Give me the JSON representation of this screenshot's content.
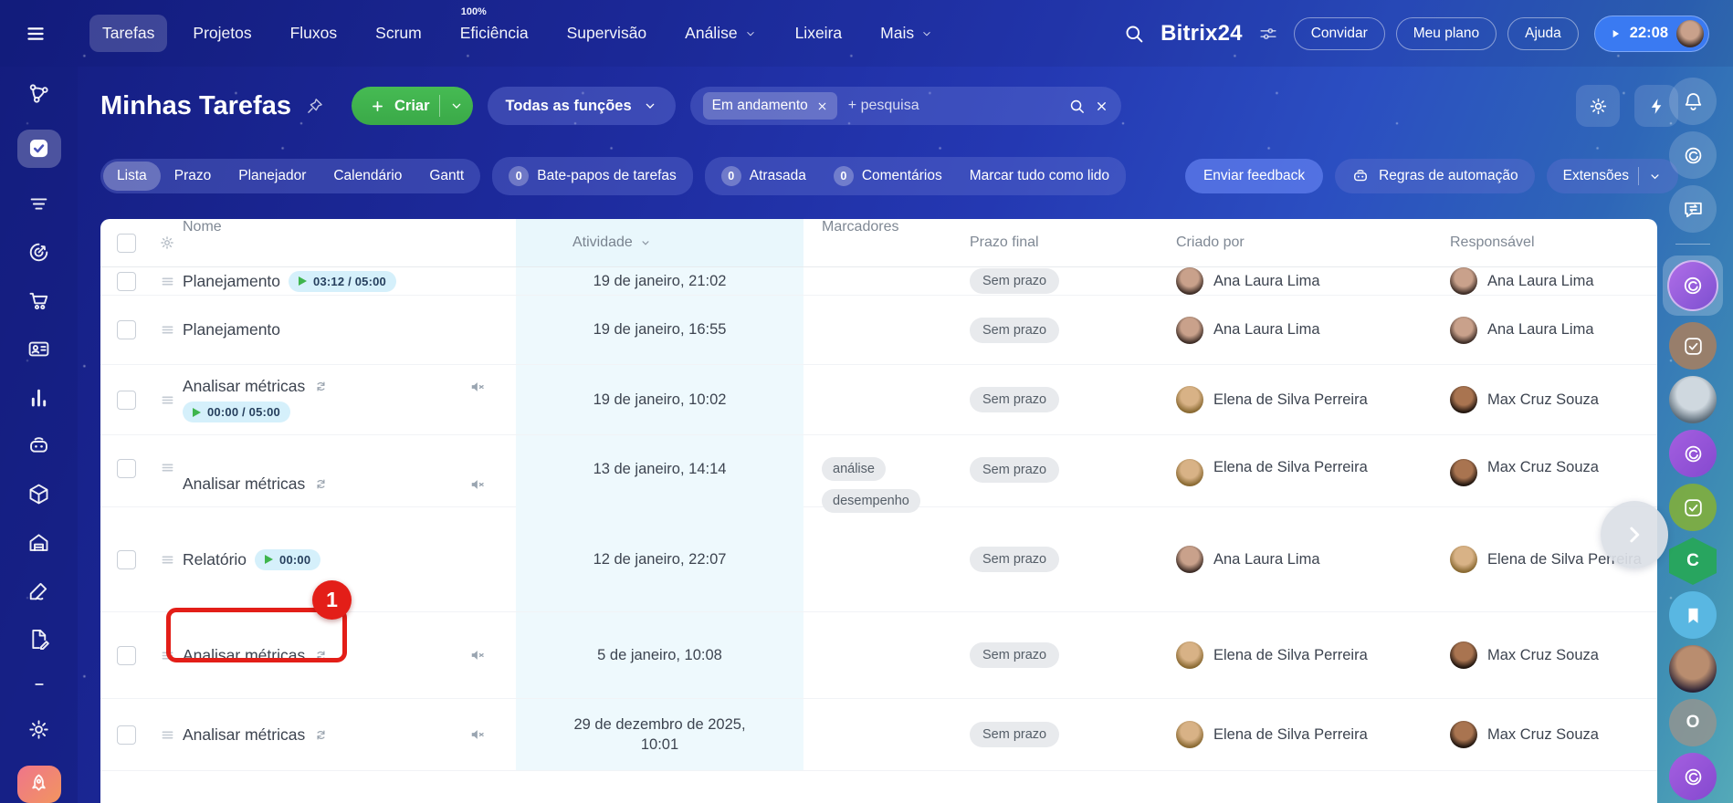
{
  "topbar": {
    "brand": "Bitrix24",
    "timer": "22:08",
    "nav": [
      {
        "label": "Tarefas",
        "active": true
      },
      {
        "label": "Projetos"
      },
      {
        "label": "Fluxos"
      },
      {
        "label": "Scrum"
      },
      {
        "label": "Eficiência",
        "badge": "100%"
      },
      {
        "label": "Supervisão"
      },
      {
        "label": "Análise",
        "chevron": true
      },
      {
        "label": "Lixeira"
      },
      {
        "label": "Mais",
        "chevron": true
      }
    ],
    "buttons": [
      {
        "label": "Convidar"
      },
      {
        "label": "Meu plano"
      },
      {
        "label": "Ajuda"
      }
    ]
  },
  "sidebar": {
    "items": [
      {
        "name": "network-icon",
        "icon": "network"
      },
      {
        "name": "tasks-icon",
        "icon": "checksq_solid",
        "active": true
      },
      {
        "name": "feed-icon",
        "icon": "feed"
      },
      {
        "name": "crm-icon",
        "icon": "target"
      },
      {
        "name": "store-icon",
        "icon": "cart"
      },
      {
        "name": "contact-center-icon",
        "icon": "idcard"
      },
      {
        "name": "analytics-icon",
        "icon": "chart"
      },
      {
        "name": "automation-robot-icon",
        "icon": "robot"
      },
      {
        "name": "catalog-box-icon",
        "icon": "box"
      },
      {
        "name": "warehouse-icon",
        "icon": "warehouse"
      },
      {
        "name": "sign-pen-icon",
        "icon": "pen"
      },
      {
        "name": "document-sign-icon",
        "icon": "docpen"
      },
      {
        "name": "collapse-dash-icon",
        "icon": "dash"
      },
      {
        "name": "settings-gear-icon",
        "icon": "gear"
      },
      {
        "name": "rocket-icon",
        "icon": "rocket",
        "accent": true
      }
    ]
  },
  "header": {
    "title": "Minhas Tarefas",
    "create_label": "Criar",
    "roles_label": "Todas as funções",
    "filter_chip": "Em andamento",
    "search_placeholder": "+ pesquisa"
  },
  "toolbar": {
    "views": [
      {
        "label": "Lista",
        "active": true
      },
      {
        "label": "Prazo"
      },
      {
        "label": "Planejador"
      },
      {
        "label": "Calendário"
      },
      {
        "label": "Gantt"
      }
    ],
    "chats": {
      "count": "0",
      "label": "Bate-papos de tarefas"
    },
    "counters": [
      {
        "count": "0",
        "label": "Atrasada"
      },
      {
        "count": "0",
        "label": "Comentários"
      }
    ],
    "mark_all": "Marcar tudo como lido",
    "feedback": "Enviar feedback",
    "automation": "Regras de automação",
    "extensions": "Extensões"
  },
  "table": {
    "columns": {
      "name": "Nome",
      "activity": "Atividade",
      "markers": "Marcadores",
      "deadline": "Prazo final",
      "created_by": "Criado por",
      "responsible": "Responsável"
    },
    "deadline_badge": "Sem prazo",
    "rows": [
      {
        "name": "Planejamento",
        "timer": "03:12 / 05:00",
        "timer_inline": true,
        "activity": "19 de janeiro, 21:02",
        "markers": [],
        "created_by": "Ana Laura Lima",
        "responsible": "Ana Laura Lima"
      },
      {
        "name": "Planejamento",
        "activity": "19 de janeiro, 16:55",
        "markers": [],
        "created_by": "Ana Laura Lima",
        "responsible": "Ana Laura Lima"
      },
      {
        "name": "Analisar métricas",
        "recurring": true,
        "muted": true,
        "timer": "00:00 / 05:00",
        "timer_inline": false,
        "activity": "19 de janeiro, 10:02",
        "markers": [],
        "created_by": "Elena de Silva Perreira",
        "responsible": "Max Cruz Souza"
      },
      {
        "name": "Analisar métricas",
        "recurring": true,
        "muted": true,
        "activity": "13 de janeiro, 14:14",
        "markers": [
          "análise",
          "desempenho"
        ],
        "created_by": "Elena de Silva Perreira",
        "responsible": "Max Cruz Souza"
      },
      {
        "name": "Relatório",
        "timer": "00:00",
        "timer_inline": true,
        "annotated": true,
        "activity": "12 de janeiro, 22:07",
        "markers": [],
        "created_by": "Ana Laura Lima",
        "responsible": "Elena de Silva Perreira"
      },
      {
        "name": "Analisar métricas",
        "recurring": true,
        "muted": true,
        "activity": "5 de janeiro, 10:08",
        "markers": [],
        "created_by": "Elena de Silva Perreira",
        "responsible": "Max Cruz Souza"
      },
      {
        "name": "Analisar métricas",
        "recurring": true,
        "muted": true,
        "activity": "29 de dezembro de 2025, 10:01",
        "markers": [],
        "created_by": "Elena de Silva Perreira",
        "responsible": "Max Cruz Souza"
      }
    ]
  },
  "people": {
    "Ana Laura Lima": [
      "#c9a18b",
      "#402f28"
    ],
    "Elena de Silva Perreira": [
      "#d8b286",
      "#8a6a33"
    ],
    "Max Cruz Souza": [
      "#a97450",
      "#231710"
    ]
  },
  "annotation": {
    "badge": "1"
  },
  "rail": {
    "items": [
      {
        "name": "notifications-bell-icon",
        "type": "glass",
        "icon": "bell"
      },
      {
        "name": "copilot-icon",
        "type": "glass",
        "icon": "copilot"
      },
      {
        "name": "messenger-sync-icon",
        "type": "glass",
        "icon": "chatsync"
      },
      {
        "name": "rail-divider",
        "type": "divider"
      },
      {
        "name": "copilot-active-icon",
        "type": "active",
        "icon": "copilot",
        "color": "linear-gradient(135deg,#b06ee8,#7d4fd0)"
      },
      {
        "name": "tasks-app-icon",
        "type": "solid",
        "icon": "checksq",
        "color": "rgba(169,127,94,0.85)"
      },
      {
        "name": "user-avatar",
        "type": "avatar",
        "colors": [
          "#cfd8df",
          "#5b6b78"
        ]
      },
      {
        "name": "copilot-purple-icon",
        "type": "solid",
        "icon": "copilot",
        "color": "linear-gradient(135deg,#a45fe0,#8549cf)"
      },
      {
        "name": "tasks-green-icon",
        "type": "solid",
        "icon": "checksq",
        "color": "rgba(127,174,63,0.92)"
      },
      {
        "name": "hexagon-c-badge",
        "type": "hex",
        "letter": "C",
        "color": "#28a55f"
      },
      {
        "name": "bookmark-icon",
        "type": "solid",
        "icon": "bookmark",
        "color": "#59b7e2"
      },
      {
        "name": "user2-avatar",
        "type": "avatar",
        "colors": [
          "#b98d6f",
          "#2c2335"
        ]
      },
      {
        "name": "letter-o-badge",
        "type": "letter",
        "letter": "O",
        "color": "rgba(150,148,142,0.8)"
      },
      {
        "name": "copilot-bottom-icon",
        "type": "solid",
        "icon": "copilot",
        "color": "linear-gradient(135deg,#a45fe0,#8549cf)"
      }
    ]
  },
  "colors": {
    "accent_green": "#3fb14d",
    "annotation_red": "#e31e18",
    "timer_chip_bg": "#d5f0fb",
    "activity_column_bg": "#eef9fd",
    "timer_pill_bg": "#3a7af2"
  }
}
